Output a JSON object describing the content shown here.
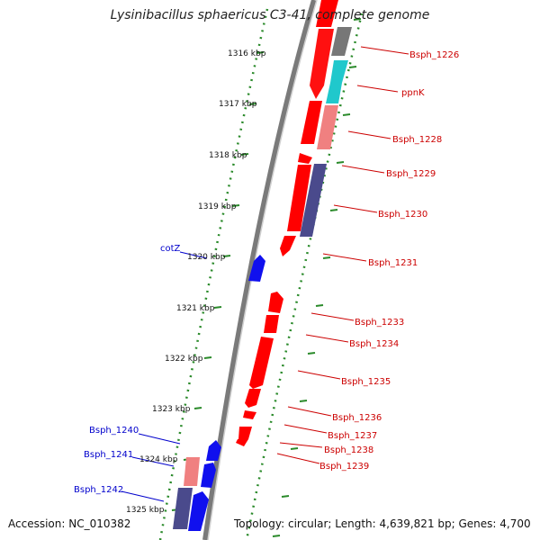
{
  "title": "Lysinibacillus sphaericus C3-41, complete genome",
  "footer": {
    "accession": "Accession: NC_010382",
    "summary": "Topology: circular; Length: 4,639,821 bp; Genes: 4,700"
  },
  "colors": {
    "red": "#ff0000",
    "dark_red": "#cc0000",
    "pink": "#f08080",
    "cyan": "#20c8cc",
    "gray": "#777777",
    "navy": "#4a4a8c",
    "blue": "#1010ee",
    "backbone": "#888888",
    "ruler_green": "#2a8a2a",
    "label_red": "#cc0000",
    "label_blue": "#0000cc"
  },
  "ruler_labels": [
    "1316 kbp",
    "1317 kbp",
    "1318 kbp",
    "1319 kbp",
    "1320 kbp",
    "1321 kbp",
    "1322 kbp",
    "1323 kbp",
    "1324 kbp",
    "1325 kbp"
  ],
  "right_gene_labels": [
    "Bsph_1226",
    "ppnK",
    "Bsph_1228",
    "Bsph_1229",
    "Bsph_1230",
    "Bsph_1231",
    "Bsph_1233",
    "Bsph_1234",
    "Bsph_1235",
    "Bsph_1236",
    "Bsph_1237",
    "Bsph_1238",
    "Bsph_1239"
  ],
  "left_gene_labels": [
    "cotZ",
    "Bsph_1240",
    "Bsph_1241",
    "Bsph_1242"
  ]
}
